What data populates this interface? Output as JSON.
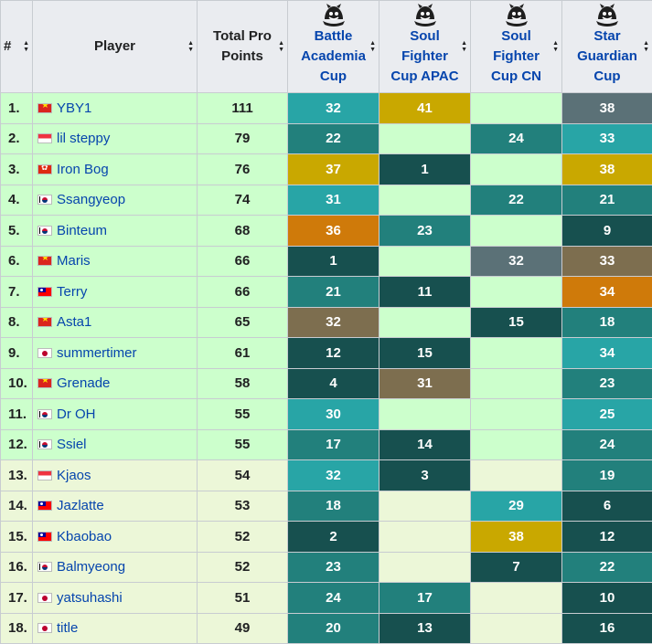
{
  "headers": {
    "rank": "#",
    "player": "Player",
    "total": [
      "Total Pro",
      "Points"
    ],
    "events": [
      {
        "lines": [
          "Battle",
          "Academia",
          "Cup"
        ],
        "icon": "tft-event-icon"
      },
      {
        "lines": [
          "Soul",
          "Fighter",
          "Cup APAC"
        ],
        "icon": "tft-event-icon"
      },
      {
        "lines": [
          "Soul",
          "Fighter",
          "Cup CN"
        ],
        "icon": "tft-event-icon"
      },
      {
        "lines": [
          "Star",
          "Guardian",
          "Cup"
        ],
        "icon": "tft-event-icon"
      }
    ]
  },
  "colors": {
    "qualified_bg": "#ccffcc",
    "other_bg": "#ecf7d8",
    "header_bg": "#eaecf0",
    "link": "#0645ad",
    "gold": "#c9a800",
    "orange": "#cf7a0a",
    "olive": "#7d6e4f",
    "slate": "#5b7177",
    "teal_light": "#28a5a6",
    "teal_mid": "#22807c",
    "teal_dark": "#17504f"
  },
  "rows": [
    {
      "rank": "1.",
      "flag": "vn",
      "player": "YBY1",
      "total": "111",
      "qualified": true,
      "cells": [
        {
          "v": "32",
          "c": "teal_light"
        },
        {
          "v": "41",
          "c": "gold"
        },
        {
          "v": "",
          "c": ""
        },
        {
          "v": "38",
          "c": "slate"
        }
      ]
    },
    {
      "rank": "2.",
      "flag": "sg",
      "player": "lil steppy",
      "total": "79",
      "qualified": true,
      "cells": [
        {
          "v": "22",
          "c": "teal_mid"
        },
        {
          "v": "",
          "c": ""
        },
        {
          "v": "24",
          "c": "teal_mid"
        },
        {
          "v": "33",
          "c": "teal_light"
        }
      ]
    },
    {
      "rank": "3.",
      "flag": "hk",
      "player": "Iron Bog",
      "total": "76",
      "qualified": true,
      "cells": [
        {
          "v": "37",
          "c": "gold"
        },
        {
          "v": "1",
          "c": "teal_dark"
        },
        {
          "v": "",
          "c": ""
        },
        {
          "v": "38",
          "c": "gold"
        }
      ]
    },
    {
      "rank": "4.",
      "flag": "kr",
      "player": "Ssangyeop",
      "total": "74",
      "qualified": true,
      "cells": [
        {
          "v": "31",
          "c": "teal_light"
        },
        {
          "v": "",
          "c": ""
        },
        {
          "v": "22",
          "c": "teal_mid"
        },
        {
          "v": "21",
          "c": "teal_mid"
        }
      ]
    },
    {
      "rank": "5.",
      "flag": "kr",
      "player": "Binteum",
      "total": "68",
      "qualified": true,
      "cells": [
        {
          "v": "36",
          "c": "orange"
        },
        {
          "v": "23",
          "c": "teal_mid"
        },
        {
          "v": "",
          "c": ""
        },
        {
          "v": "9",
          "c": "teal_dark"
        }
      ]
    },
    {
      "rank": "6.",
      "flag": "vn",
      "player": "Maris",
      "total": "66",
      "qualified": true,
      "cells": [
        {
          "v": "1",
          "c": "teal_dark"
        },
        {
          "v": "",
          "c": ""
        },
        {
          "v": "32",
          "c": "slate"
        },
        {
          "v": "33",
          "c": "olive"
        }
      ]
    },
    {
      "rank": "7.",
      "flag": "tw",
      "player": "Terry",
      "total": "66",
      "qualified": true,
      "cells": [
        {
          "v": "21",
          "c": "teal_mid"
        },
        {
          "v": "11",
          "c": "teal_dark"
        },
        {
          "v": "",
          "c": ""
        },
        {
          "v": "34",
          "c": "orange"
        }
      ]
    },
    {
      "rank": "8.",
      "flag": "vn",
      "player": "Asta1",
      "total": "65",
      "qualified": true,
      "cells": [
        {
          "v": "32",
          "c": "olive"
        },
        {
          "v": "",
          "c": ""
        },
        {
          "v": "15",
          "c": "teal_dark"
        },
        {
          "v": "18",
          "c": "teal_mid"
        }
      ]
    },
    {
      "rank": "9.",
      "flag": "jp",
      "player": "summertimer",
      "total": "61",
      "qualified": true,
      "cells": [
        {
          "v": "12",
          "c": "teal_dark"
        },
        {
          "v": "15",
          "c": "teal_dark"
        },
        {
          "v": "",
          "c": ""
        },
        {
          "v": "34",
          "c": "teal_light"
        }
      ]
    },
    {
      "rank": "10.",
      "flag": "vn",
      "player": "Grenade",
      "total": "58",
      "qualified": true,
      "cells": [
        {
          "v": "4",
          "c": "teal_dark"
        },
        {
          "v": "31",
          "c": "olive"
        },
        {
          "v": "",
          "c": ""
        },
        {
          "v": "23",
          "c": "teal_mid"
        }
      ]
    },
    {
      "rank": "11.",
      "flag": "kr",
      "player": "Dr OH",
      "total": "55",
      "qualified": true,
      "cells": [
        {
          "v": "30",
          "c": "teal_light"
        },
        {
          "v": "",
          "c": ""
        },
        {
          "v": "",
          "c": ""
        },
        {
          "v": "25",
          "c": "teal_light"
        }
      ]
    },
    {
      "rank": "12.",
      "flag": "kr",
      "player": "Ssiel",
      "total": "55",
      "qualified": true,
      "cells": [
        {
          "v": "17",
          "c": "teal_mid"
        },
        {
          "v": "14",
          "c": "teal_dark"
        },
        {
          "v": "",
          "c": ""
        },
        {
          "v": "24",
          "c": "teal_mid"
        }
      ]
    },
    {
      "rank": "13.",
      "flag": "sg",
      "player": "Kjaos",
      "total": "54",
      "qualified": false,
      "cells": [
        {
          "v": "32",
          "c": "teal_light"
        },
        {
          "v": "3",
          "c": "teal_dark"
        },
        {
          "v": "",
          "c": ""
        },
        {
          "v": "19",
          "c": "teal_mid"
        }
      ]
    },
    {
      "rank": "14.",
      "flag": "tw",
      "player": "Jazlatte",
      "total": "53",
      "qualified": false,
      "cells": [
        {
          "v": "18",
          "c": "teal_mid"
        },
        {
          "v": "",
          "c": ""
        },
        {
          "v": "29",
          "c": "teal_light"
        },
        {
          "v": "6",
          "c": "teal_dark"
        }
      ]
    },
    {
      "rank": "15.",
      "flag": "tw",
      "player": "Kbaobao",
      "total": "52",
      "qualified": false,
      "cells": [
        {
          "v": "2",
          "c": "teal_dark"
        },
        {
          "v": "",
          "c": ""
        },
        {
          "v": "38",
          "c": "gold"
        },
        {
          "v": "12",
          "c": "teal_dark"
        }
      ]
    },
    {
      "rank": "16.",
      "flag": "kr",
      "player": "Balmyeong",
      "total": "52",
      "qualified": false,
      "cells": [
        {
          "v": "23",
          "c": "teal_mid"
        },
        {
          "v": "",
          "c": ""
        },
        {
          "v": "7",
          "c": "teal_dark"
        },
        {
          "v": "22",
          "c": "teal_mid"
        }
      ]
    },
    {
      "rank": "17.",
      "flag": "jp",
      "player": "yatsuhashi",
      "total": "51",
      "qualified": false,
      "cells": [
        {
          "v": "24",
          "c": "teal_mid"
        },
        {
          "v": "17",
          "c": "teal_mid"
        },
        {
          "v": "",
          "c": ""
        },
        {
          "v": "10",
          "c": "teal_dark"
        }
      ]
    },
    {
      "rank": "18.",
      "flag": "jp",
      "player": "title",
      "total": "49",
      "qualified": false,
      "cells": [
        {
          "v": "20",
          "c": "teal_mid"
        },
        {
          "v": "13",
          "c": "teal_dark"
        },
        {
          "v": "",
          "c": ""
        },
        {
          "v": "16",
          "c": "teal_dark"
        }
      ]
    }
  ]
}
